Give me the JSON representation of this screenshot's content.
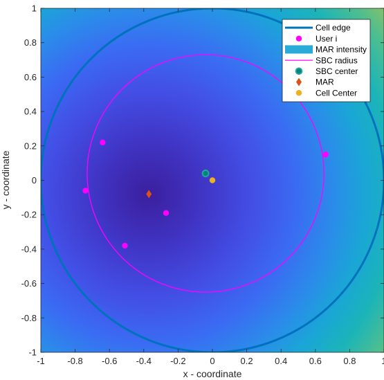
{
  "chart_data": {
    "type": "scatter",
    "xlabel": "x - coordinate",
    "ylabel": "y - coordinate",
    "xlim": [
      -1,
      1
    ],
    "ylim": [
      -1,
      1
    ],
    "xticks": [
      -1,
      -0.8,
      -0.6,
      -0.4,
      -0.2,
      0,
      0.2,
      0.4,
      0.6,
      0.8,
      1
    ],
    "yticks": [
      -1,
      -0.8,
      -0.6,
      -0.4,
      -0.2,
      0,
      0.2,
      0.4,
      0.6,
      0.8,
      1
    ],
    "xtick_labels": [
      "-1",
      "-0.8",
      "-0.6",
      "-0.4",
      "-0.2",
      "0",
      "0.2",
      "0.4",
      "0.6",
      "0.8",
      "1"
    ],
    "ytick_labels": [
      "-1",
      "-0.8",
      "-0.6",
      "-0.4",
      "-0.2",
      "0",
      "0.2",
      "0.4",
      "0.6",
      "0.8",
      "1"
    ],
    "grid": false,
    "legend_position": "top-right",
    "background": {
      "type": "heatmap",
      "name": "MAR intensity",
      "center": [
        -0.37,
        -0.08
      ],
      "colormap": "parula"
    },
    "cell_edge": {
      "name": "Cell edge",
      "center": [
        0,
        0
      ],
      "radius": 1.0,
      "color": "#0072BD"
    },
    "sbc_radius": {
      "name": "SBC radius",
      "center": [
        -0.04,
        0.04
      ],
      "radius": 0.69,
      "color": "#FF00FF"
    },
    "users": {
      "name": "User i",
      "color": "#FF00FF",
      "points": [
        {
          "x": -0.64,
          "y": 0.22
        },
        {
          "x": -0.74,
          "y": -0.06
        },
        {
          "x": -0.27,
          "y": -0.19
        },
        {
          "x": -0.51,
          "y": -0.38
        },
        {
          "x": 0.66,
          "y": 0.15
        }
      ]
    },
    "sbc_center": {
      "name": "SBC center",
      "x": -0.04,
      "y": 0.04,
      "color": "#008080"
    },
    "mar": {
      "name": "MAR",
      "x": -0.37,
      "y": -0.08,
      "color": "#D95319"
    },
    "cell_center": {
      "name": "Cell Center",
      "x": 0,
      "y": 0,
      "color": "#EDB120"
    },
    "legend": [
      {
        "label": "Cell edge",
        "symbol": "line",
        "color": "#0072BD"
      },
      {
        "label": "User i",
        "symbol": "dot",
        "color": "#FF00FF"
      },
      {
        "label": "MAR intensity",
        "symbol": "patch",
        "color": "#2AAAD7"
      },
      {
        "label": "SBC radius",
        "symbol": "thin-line",
        "color": "#FF00FF"
      },
      {
        "label": "SBC center",
        "symbol": "ring-dot",
        "color": "#008080"
      },
      {
        "label": "MAR",
        "symbol": "diamond",
        "color": "#D95319"
      },
      {
        "label": "Cell Center",
        "symbol": "dot",
        "color": "#EDB120"
      }
    ]
  }
}
